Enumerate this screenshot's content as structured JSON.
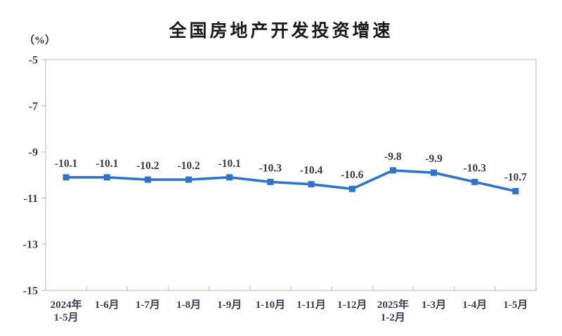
{
  "page": {
    "background": "#ffffff"
  },
  "chart_data": {
    "type": "line",
    "title": "全国房地产开发投资增速",
    "unit_label": "（%）",
    "categories": [
      [
        "2024年",
        "1-5月"
      ],
      [
        "1-6月"
      ],
      [
        "1-7月"
      ],
      [
        "1-8月"
      ],
      [
        "1-9月"
      ],
      [
        "1-10月"
      ],
      [
        "1-11月"
      ],
      [
        "1-12月"
      ],
      [
        "2025年",
        "1-2月"
      ],
      [
        "1-3月"
      ],
      [
        "1-4月"
      ],
      [
        "1-5月"
      ]
    ],
    "values": [
      -10.1,
      -10.1,
      -10.2,
      -10.2,
      -10.1,
      -10.3,
      -10.4,
      -10.6,
      -9.8,
      -9.9,
      -10.3,
      -10.7
    ],
    "data_labels": [
      "-10.1",
      "-10.1",
      "-10.2",
      "-10.2",
      "-10.1",
      "-10.3",
      "-10.4",
      "-10.6",
      "-9.8",
      "-9.9",
      "-10.3",
      "-10.7"
    ],
    "xlabel": "",
    "ylabel": "（%）",
    "ylim": [
      -15,
      -5
    ],
    "yticks": [
      "-5",
      "-7",
      "-9",
      "-11",
      "-13",
      "-15"
    ],
    "ytick_values": [
      -5,
      -7,
      -9,
      -11,
      -13,
      -15
    ],
    "grid": false,
    "legend": "none",
    "marker": "square",
    "colors": {
      "line": "#2E74C8",
      "marker": "#2E74C8",
      "data_label": "#3b3b3b",
      "axis_text": "#3c3c58",
      "border": "#c9c9c9",
      "title": "#1a1a1a"
    }
  }
}
